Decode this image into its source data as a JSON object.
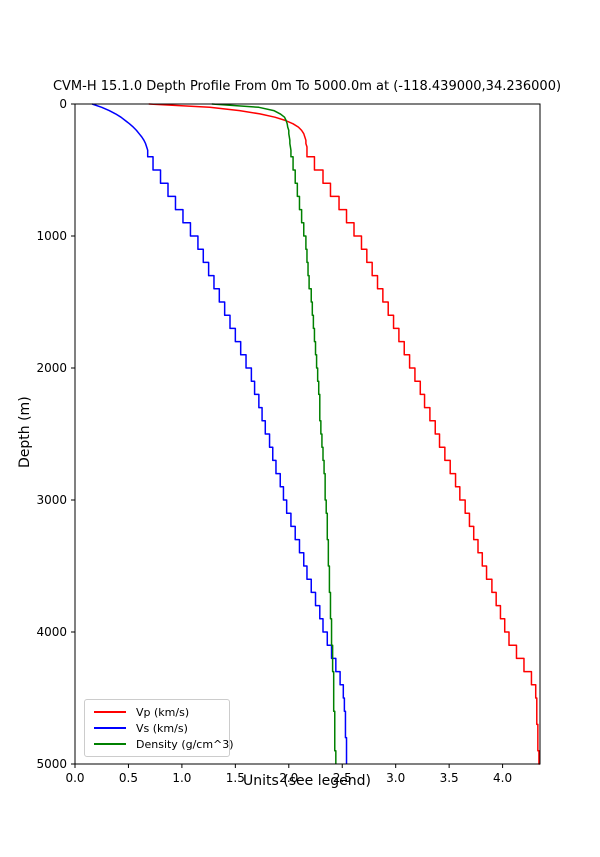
{
  "chart_data": {
    "type": "line",
    "title": "CVM-H 15.1.0 Depth Profile From 0m To 5000.0m at (-118.439000,34.236000)",
    "xlabel": "Units (see legend)",
    "ylabel": "Depth (m)",
    "xlim": [
      0.0,
      4.35
    ],
    "ylim": [
      0,
      5000
    ],
    "y_axis_inverted": true,
    "grid": false,
    "legend_position": "lower left",
    "axis_color": "#000000",
    "x_ticks": [
      0.0,
      0.5,
      1.0,
      1.5,
      2.0,
      2.5,
      3.0,
      3.5,
      4.0
    ],
    "x_tick_labels": [
      "0.0",
      "0.5",
      "1.0",
      "1.5",
      "2.0",
      "2.5",
      "3.0",
      "3.5",
      "4.0"
    ],
    "y_ticks": [
      0,
      1000,
      2000,
      3000,
      4000,
      5000
    ],
    "y_tick_labels": [
      "0",
      "1000",
      "2000",
      "3000",
      "4000",
      "5000"
    ],
    "series": [
      {
        "name": "Vp (km/s)",
        "color": "#ff0000",
        "smooth_until": 350,
        "points": [
          [
            0,
            0.69
          ],
          [
            25,
            1.26
          ],
          [
            50,
            1.54
          ],
          [
            75,
            1.73
          ],
          [
            100,
            1.87
          ],
          [
            125,
            1.97
          ],
          [
            150,
            2.04
          ],
          [
            175,
            2.09
          ],
          [
            200,
            2.12
          ],
          [
            225,
            2.14
          ],
          [
            250,
            2.15
          ],
          [
            275,
            2.16
          ],
          [
            300,
            2.16
          ],
          [
            325,
            2.17
          ],
          [
            350,
            2.17
          ],
          [
            400,
            2.24
          ],
          [
            500,
            2.32
          ],
          [
            600,
            2.39
          ],
          [
            700,
            2.47
          ],
          [
            800,
            2.54
          ],
          [
            900,
            2.61
          ],
          [
            1000,
            2.68
          ],
          [
            1100,
            2.73
          ],
          [
            1200,
            2.78
          ],
          [
            1300,
            2.83
          ],
          [
            1400,
            2.88
          ],
          [
            1500,
            2.93
          ],
          [
            1600,
            2.98
          ],
          [
            1700,
            3.03
          ],
          [
            1800,
            3.08
          ],
          [
            1900,
            3.13
          ],
          [
            2000,
            3.18
          ],
          [
            2100,
            3.23
          ],
          [
            2200,
            3.27
          ],
          [
            2300,
            3.32
          ],
          [
            2400,
            3.37
          ],
          [
            2500,
            3.41
          ],
          [
            2600,
            3.46
          ],
          [
            2700,
            3.51
          ],
          [
            2800,
            3.56
          ],
          [
            2900,
            3.6
          ],
          [
            3000,
            3.65
          ],
          [
            3100,
            3.69
          ],
          [
            3200,
            3.73
          ],
          [
            3300,
            3.77
          ],
          [
            3400,
            3.81
          ],
          [
            3500,
            3.85
          ],
          [
            3600,
            3.9
          ],
          [
            3700,
            3.94
          ],
          [
            3800,
            3.98
          ],
          [
            3900,
            4.02
          ],
          [
            4000,
            4.06
          ],
          [
            4100,
            4.13
          ],
          [
            4200,
            4.2
          ],
          [
            4300,
            4.27
          ],
          [
            4400,
            4.31
          ],
          [
            4500,
            4.32
          ],
          [
            4600,
            4.32
          ],
          [
            4700,
            4.33
          ],
          [
            4800,
            4.33
          ],
          [
            4900,
            4.34
          ],
          [
            5000,
            4.35
          ]
        ]
      },
      {
        "name": "Vs (km/s)",
        "color": "#0000ff",
        "smooth_until": 350,
        "points": [
          [
            0,
            0.16
          ],
          [
            25,
            0.25
          ],
          [
            50,
            0.32
          ],
          [
            75,
            0.38
          ],
          [
            100,
            0.43
          ],
          [
            125,
            0.47
          ],
          [
            150,
            0.51
          ],
          [
            175,
            0.545
          ],
          [
            200,
            0.575
          ],
          [
            225,
            0.6
          ],
          [
            250,
            0.625
          ],
          [
            275,
            0.645
          ],
          [
            300,
            0.66
          ],
          [
            325,
            0.67
          ],
          [
            350,
            0.68
          ],
          [
            400,
            0.73
          ],
          [
            500,
            0.8
          ],
          [
            600,
            0.87
          ],
          [
            700,
            0.94
          ],
          [
            800,
            1.01
          ],
          [
            900,
            1.08
          ],
          [
            1000,
            1.15
          ],
          [
            1100,
            1.2
          ],
          [
            1200,
            1.25
          ],
          [
            1300,
            1.3
          ],
          [
            1400,
            1.35
          ],
          [
            1500,
            1.4
          ],
          [
            1600,
            1.45
          ],
          [
            1700,
            1.5
          ],
          [
            1800,
            1.55
          ],
          [
            1900,
            1.6
          ],
          [
            2000,
            1.65
          ],
          [
            2100,
            1.68
          ],
          [
            2200,
            1.72
          ],
          [
            2300,
            1.75
          ],
          [
            2400,
            1.78
          ],
          [
            2500,
            1.82
          ],
          [
            2600,
            1.85
          ],
          [
            2700,
            1.88
          ],
          [
            2800,
            1.92
          ],
          [
            2900,
            1.95
          ],
          [
            3000,
            1.98
          ],
          [
            3100,
            2.02
          ],
          [
            3200,
            2.06
          ],
          [
            3300,
            2.1
          ],
          [
            3400,
            2.14
          ],
          [
            3500,
            2.17
          ],
          [
            3600,
            2.21
          ],
          [
            3700,
            2.25
          ],
          [
            3800,
            2.29
          ],
          [
            3900,
            2.32
          ],
          [
            4000,
            2.36
          ],
          [
            4100,
            2.4
          ],
          [
            4200,
            2.44
          ],
          [
            4300,
            2.48
          ],
          [
            4400,
            2.51
          ],
          [
            4500,
            2.52
          ],
          [
            4600,
            2.53
          ],
          [
            4700,
            2.53
          ],
          [
            4800,
            2.54
          ],
          [
            4900,
            2.54
          ],
          [
            5000,
            2.54
          ]
        ]
      },
      {
        "name": "Density (g/cm^3)",
        "color": "#008000",
        "smooth_until": 350,
        "points": [
          [
            0,
            1.28
          ],
          [
            25,
            1.72
          ],
          [
            50,
            1.86
          ],
          [
            75,
            1.92
          ],
          [
            100,
            1.96
          ],
          [
            125,
            1.975
          ],
          [
            150,
            1.985
          ],
          [
            175,
            1.99
          ],
          [
            200,
            2.0
          ],
          [
            225,
            2.0
          ],
          [
            250,
            2.005
          ],
          [
            275,
            2.01
          ],
          [
            300,
            2.01
          ],
          [
            325,
            2.015
          ],
          [
            350,
            2.02
          ],
          [
            400,
            2.04
          ],
          [
            500,
            2.06
          ],
          [
            600,
            2.08
          ],
          [
            700,
            2.1
          ],
          [
            800,
            2.12
          ],
          [
            900,
            2.14
          ],
          [
            1000,
            2.16
          ],
          [
            1100,
            2.17
          ],
          [
            1200,
            2.18
          ],
          [
            1300,
            2.19
          ],
          [
            1400,
            2.21
          ],
          [
            1500,
            2.22
          ],
          [
            1600,
            2.23
          ],
          [
            1700,
            2.24
          ],
          [
            1800,
            2.25
          ],
          [
            1900,
            2.26
          ],
          [
            2000,
            2.27
          ],
          [
            2100,
            2.28
          ],
          [
            2200,
            2.29
          ],
          [
            2300,
            2.29
          ],
          [
            2400,
            2.3
          ],
          [
            2500,
            2.31
          ],
          [
            2600,
            2.32
          ],
          [
            2700,
            2.33
          ],
          [
            2800,
            2.34
          ],
          [
            2900,
            2.34
          ],
          [
            3000,
            2.35
          ],
          [
            3100,
            2.36
          ],
          [
            3200,
            2.36
          ],
          [
            3300,
            2.37
          ],
          [
            3400,
            2.37
          ],
          [
            3500,
            2.38
          ],
          [
            3600,
            2.38
          ],
          [
            3700,
            2.39
          ],
          [
            3800,
            2.39
          ],
          [
            3900,
            2.4
          ],
          [
            4000,
            2.4
          ],
          [
            4100,
            2.41
          ],
          [
            4200,
            2.41
          ],
          [
            4300,
            2.42
          ],
          [
            4400,
            2.42
          ],
          [
            4500,
            2.42
          ],
          [
            4600,
            2.43
          ],
          [
            4700,
            2.43
          ],
          [
            4800,
            2.43
          ],
          [
            4900,
            2.44
          ],
          [
            5000,
            2.44
          ]
        ]
      }
    ]
  }
}
